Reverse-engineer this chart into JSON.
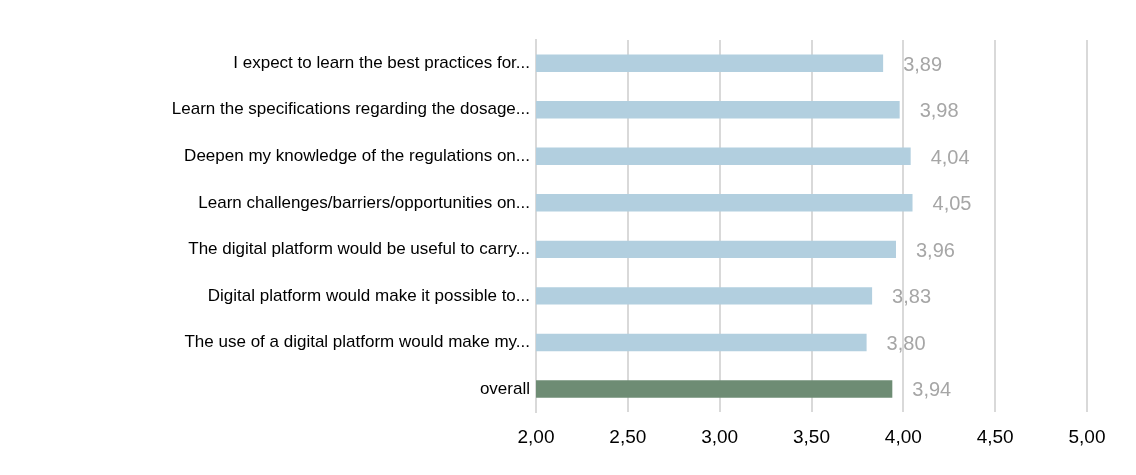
{
  "chart_data": {
    "type": "bar",
    "orientation": "horizontal",
    "categories": [
      "I expect to learn the best practices for...",
      "Learn the specifications regarding the dosage...",
      "Deepen my knowledge of the regulations on...",
      "Learn challenges/barriers/opportunities on...",
      "The digital platform would be useful to carry...",
      "Digital platform would make it possible to...",
      "The use of a digital platform would make my...",
      "overall"
    ],
    "values": [
      3.89,
      3.98,
      4.04,
      4.05,
      3.96,
      3.83,
      3.8,
      3.94
    ],
    "colors": [
      "#b2cfdf",
      "#b2cfdf",
      "#b2cfdf",
      "#b2cfdf",
      "#b2cfdf",
      "#b2cfdf",
      "#b2cfdf",
      "#6e8c74"
    ],
    "value_labels": [
      "3,89",
      "3,98",
      "4,04",
      "4,05",
      "3,96",
      "3,83",
      "3,80",
      "3,94"
    ],
    "xlim": [
      2,
      5
    ],
    "xticks": [
      {
        "value": 2,
        "label": "2,00"
      },
      {
        "value": 2.5,
        "label": "2,50"
      },
      {
        "value": 3,
        "label": "3,00"
      },
      {
        "value": 3.5,
        "label": "3,50"
      },
      {
        "value": 4,
        "label": "4,00"
      },
      {
        "value": 4.5,
        "label": "4,50"
      },
      {
        "value": 5,
        "label": "5,00"
      }
    ],
    "grid": "x",
    "legend": false
  }
}
